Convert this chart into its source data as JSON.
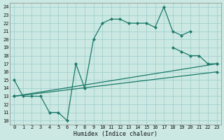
{
  "bg_color": "#cce8e2",
  "grid_color": "#99cccc",
  "line_color": "#1a7a6a",
  "xlabel": "Humidex (Indice chaleur)",
  "xlim": [
    -0.5,
    23.5
  ],
  "ylim": [
    9.5,
    24.5
  ],
  "xticks": [
    0,
    1,
    2,
    3,
    4,
    5,
    6,
    7,
    8,
    9,
    10,
    11,
    12,
    13,
    14,
    15,
    16,
    17,
    18,
    19,
    20,
    21,
    22,
    23
  ],
  "yticks": [
    10,
    11,
    12,
    13,
    14,
    15,
    16,
    17,
    18,
    19,
    20,
    21,
    22,
    23,
    24
  ],
  "curves": [
    {
      "x": [
        0,
        1,
        2,
        3,
        4,
        5,
        6,
        7,
        8,
        9,
        10,
        11,
        12,
        13,
        14,
        15,
        16,
        17,
        18,
        19,
        20
      ],
      "y": [
        15,
        13,
        13,
        13,
        11,
        11,
        10,
        17,
        14,
        20,
        22,
        22.5,
        22.5,
        22,
        22,
        22,
        21.5,
        24,
        21,
        20.5,
        21
      ]
    },
    {
      "x": [
        18,
        19,
        20,
        21,
        22,
        23
      ],
      "y": [
        19,
        18.5,
        18,
        18,
        17,
        17
      ]
    },
    {
      "x": [
        0,
        23
      ],
      "y": [
        13,
        17
      ]
    },
    {
      "x": [
        0,
        23
      ],
      "y": [
        13,
        16
      ]
    }
  ]
}
